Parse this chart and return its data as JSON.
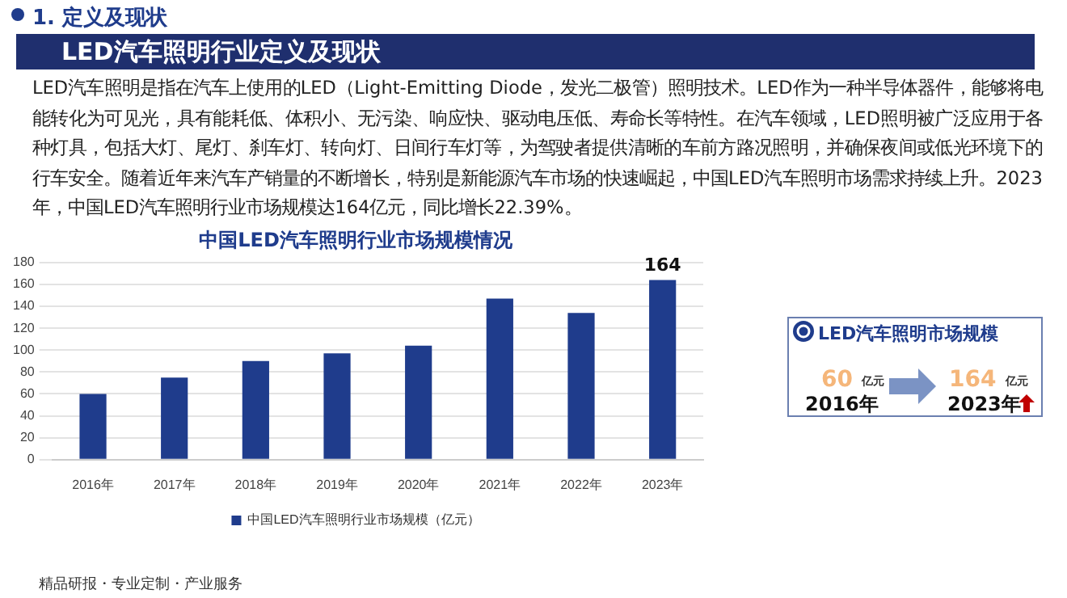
{
  "chart_data": {
    "type": "bar",
    "title": "中国LED汽车照明行业市场规模情况",
    "categories": [
      "2016年",
      "2017年",
      "2018年",
      "2019年",
      "2020年",
      "2021年",
      "2022年",
      "2023年"
    ],
    "series": [
      {
        "name": "中国LED汽车照明行业市场规模（亿元）",
        "color": "#1f3c8c",
        "values": [
          60,
          75,
          90,
          97,
          104,
          147,
          134,
          164
        ],
        "value_labels": [
          null,
          null,
          null,
          null,
          null,
          null,
          null,
          "164"
        ]
      }
    ],
    "ylim": [
      0,
      180
    ],
    "yticks": [
      0,
      20,
      40,
      60,
      80,
      100,
      120,
      140,
      160,
      180
    ],
    "grid": "y",
    "legend": "bottom",
    "annotations": [
      "1. 定义及现状",
      "LED汽车照明行业定义及现状",
      "LED汽车照明是指在汽车上使用的LED（Light-Emitting Diode，发光二极管）照明技术。LED作为一种半导体器件，能够将电能转化为可见光，具有能耗低、体积小、无污染、响应快、驱动电压低、寿命长等特性。在汽车领域，LED照明被广泛应用于各种灯具，包括大灯、尾灯、刹车灯、转向灯、日间行车灯等，为驾驶者提供清晰的车前方路况照明，并确保夜间或低光环境下的行车安全。随着近年来汽车产销量的不断增长，特别是新能源汽车市场的快速崛起，中国LED汽车照明市场需求持续上升。2023年，中国LED汽车照明行业市场规模达164亿元，同比增长22.39%。",
      "LED汽车照明市场规模",
      "60",
      "亿元",
      "2016年",
      "164",
      "亿元",
      "2023年",
      "精品研报・专业定制・产业服务"
    ]
  }
}
